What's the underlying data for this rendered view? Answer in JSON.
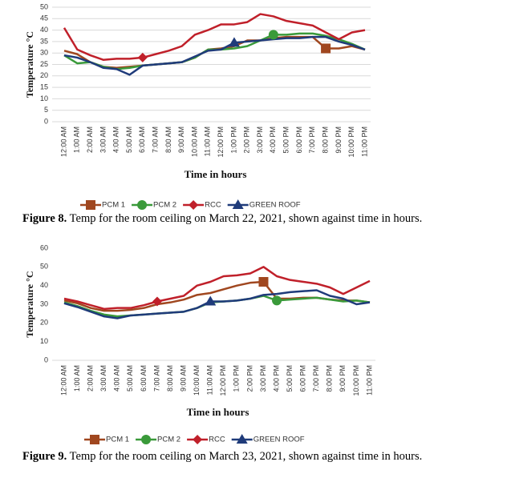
{
  "chart_data": [
    {
      "type": "line",
      "x_label": "Time in hours",
      "y_label": "Temperature °C",
      "caption_label": "Figure 8.",
      "caption": " Temp for the room ceiling on March 22, 2021, shown against time in hours.",
      "categories": [
        "12:00 AM",
        "1:00 AM",
        "2:00 AM",
        "3:00 AM",
        "4:00 AM",
        "5:00 AM",
        "6:00 AM",
        "7:00 AM",
        "8:00 AM",
        "9:00 AM",
        "10:00 AM",
        "11:00 AM",
        "12:00 PM",
        "1:00 PM",
        "2:00 PM",
        "3:00 PM",
        "4:00 PM",
        "5:00 PM",
        "6:00 PM",
        "7:00 PM",
        "8:00 PM",
        "9:00 PM",
        "10:00 PM",
        "11:00 PM"
      ],
      "ylim": [
        0,
        50
      ],
      "yticks": [
        0,
        5,
        10,
        15,
        20,
        25,
        30,
        35,
        40,
        45,
        50
      ],
      "grid": true,
      "series": [
        {
          "name": "PCM 1",
          "color": "#a0471f",
          "marker": "square",
          "marker_index": 20,
          "values": [
            31,
            29.5,
            26,
            24,
            23.5,
            24,
            24.5,
            25,
            25.5,
            26,
            28,
            31.5,
            32,
            33,
            35.5,
            35.5,
            36.5,
            37,
            37,
            37,
            32,
            32,
            33,
            31.5
          ]
        },
        {
          "name": "PCM 2",
          "color": "#3a9a3a",
          "marker": "circle",
          "marker_index": 16,
          "values": [
            29,
            25.5,
            26,
            24,
            23,
            23.5,
            24.5,
            25,
            25.5,
            26,
            28,
            31.5,
            31.5,
            32,
            33,
            35.5,
            38,
            38,
            38.5,
            38.5,
            37.5,
            36,
            34,
            31.5
          ]
        },
        {
          "name": "RCC",
          "color": "#c0202a",
          "marker": "diamond",
          "marker_index": 6,
          "values": [
            41,
            31.5,
            29,
            27,
            27.5,
            27.5,
            28,
            29.5,
            31,
            33,
            38,
            40,
            42.5,
            42.5,
            43.5,
            47,
            46,
            44,
            43,
            42,
            39,
            36,
            39,
            40
          ]
        },
        {
          "name": "GREEN ROOF",
          "color": "#1f3b7a",
          "marker": "triangle",
          "marker_index": 13,
          "values": [
            29,
            28,
            26,
            23.5,
            23,
            20.5,
            24.5,
            25,
            25.5,
            26,
            28.5,
            31,
            31.5,
            34.5,
            35,
            35.5,
            36,
            36.5,
            36.5,
            37,
            37,
            35,
            33.5,
            31.5
          ]
        }
      ]
    },
    {
      "type": "line",
      "x_label": "Time in hours",
      "y_label": "Temperature °C",
      "caption_label": "Figure 9.",
      "caption": " Temp for the room ceiling on March 23, 2021, shown against time in hours.",
      "categories": [
        "12:00 AM",
        "1:00 AM",
        "2:00 AM",
        "3:00 AM",
        "4:00 AM",
        "5:00 AM",
        "6:00 AM",
        "7:00 AM",
        "8:00 AM",
        "9:00 AM",
        "10:00 AM",
        "11:00 AM",
        "12:00 PM",
        "1:00 PM",
        "2:00 PM",
        "3:00 PM",
        "4:00 PM",
        "5:00 PM",
        "6:00 PM",
        "7:00 PM",
        "8:00 PM",
        "9:00 PM",
        "10:00 PM",
        "11:00 PM"
      ],
      "ylim": [
        0,
        60
      ],
      "yticks": [
        0,
        10,
        20,
        30,
        40,
        50,
        60
      ],
      "grid": false,
      "series": [
        {
          "name": "PCM 1",
          "color": "#a0471f",
          "marker": "square",
          "marker_index": 15,
          "values": [
            32,
            30.5,
            28,
            26.5,
            26.5,
            27,
            28,
            30,
            31,
            32.5,
            35,
            36,
            38,
            40,
            41.5,
            42,
            33,
            33,
            33.5,
            33.5,
            32.5,
            32,
            32,
            31
          ]
        },
        {
          "name": "PCM 2",
          "color": "#3a9a3a",
          "marker": "circle",
          "marker_index": 16,
          "values": [
            31,
            29,
            26.5,
            24.5,
            23.5,
            24,
            24.5,
            25,
            25.5,
            26,
            28,
            31,
            31.5,
            32,
            33,
            34.5,
            32,
            32.5,
            33,
            33.5,
            32.5,
            31.5,
            32,
            31
          ]
        },
        {
          "name": "RCC",
          "color": "#c0202a",
          "marker": "diamond",
          "marker_index": 7,
          "values": [
            33,
            31.5,
            29.5,
            27.5,
            28,
            28,
            29.5,
            31.5,
            33,
            34.5,
            40,
            42,
            45,
            45.5,
            46.5,
            50,
            45,
            43,
            42,
            41,
            39,
            35.5,
            39,
            42.5
          ]
        },
        {
          "name": "GREEN ROOF",
          "color": "#1f3b7a",
          "marker": "triangle",
          "marker_index": 11,
          "values": [
            30.5,
            28.5,
            26,
            23.5,
            22.5,
            24,
            24.5,
            25,
            25.5,
            26,
            28,
            31.5,
            31.5,
            32,
            33,
            35,
            35.5,
            36.5,
            37,
            37.5,
            34.5,
            33,
            30,
            31
          ]
        }
      ]
    }
  ]
}
